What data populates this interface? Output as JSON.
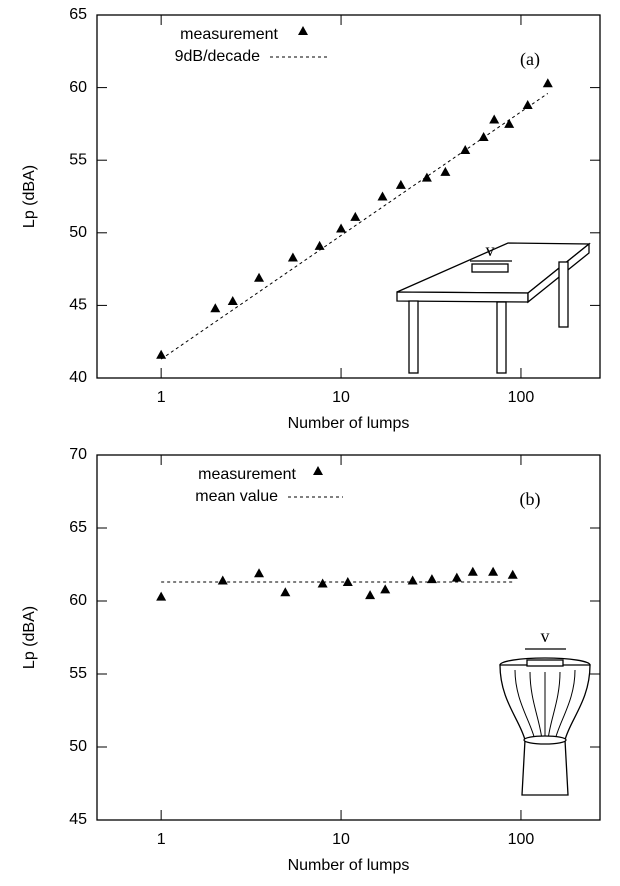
{
  "chart_data": [
    {
      "type": "scatter",
      "panel_label": "(a)",
      "xlabel": "Number of lumps",
      "ylabel": "Lp (dBA)",
      "xscale": "log",
      "xlim": [
        0.44,
        275
      ],
      "xticks": [
        1,
        10,
        100
      ],
      "ylim": [
        40,
        65
      ],
      "yticks": [
        40,
        45,
        50,
        55,
        60,
        65
      ],
      "inset_label": "v",
      "series": [
        {
          "name": "measurement",
          "color": "#000000",
          "marker": "triangle",
          "x": [
            1,
            2,
            2.5,
            3.5,
            5.4,
            7.6,
            10,
            12,
            17,
            21.5,
            30,
            38,
            49,
            62,
            71,
            86,
            109,
            141
          ],
          "values": [
            41.6,
            44.8,
            45.3,
            46.9,
            48.3,
            49.1,
            50.3,
            51.1,
            52.5,
            53.3,
            53.8,
            54.2,
            55.7,
            56.6,
            57.8,
            57.5,
            58.8,
            60.3
          ]
        },
        {
          "name": "9dB/decade",
          "color": "#000000",
          "style": "dashed",
          "x": [
            1,
            141
          ],
          "values": [
            41.3,
            59.6
          ]
        }
      ]
    },
    {
      "type": "scatter",
      "panel_label": "(b)",
      "xlabel": "Number of lumps",
      "ylabel": "Lp (dBA)",
      "xscale": "log",
      "xlim": [
        0.44,
        275
      ],
      "xticks": [
        1,
        10,
        100
      ],
      "ylim": [
        45,
        70
      ],
      "yticks": [
        45,
        50,
        55,
        60,
        65,
        70
      ],
      "inset_label": "v",
      "series": [
        {
          "name": "measurement",
          "color": "#000000",
          "marker": "triangle",
          "x": [
            1,
            2.2,
            3.5,
            4.9,
            7.9,
            10.9,
            14.5,
            17.6,
            25,
            32,
            44,
            54,
            70,
            90
          ],
          "values": [
            60.3,
            61.4,
            61.9,
            60.6,
            61.2,
            61.3,
            60.4,
            60.8,
            61.4,
            61.5,
            61.6,
            62.0,
            62.0,
            61.8
          ]
        },
        {
          "name": "mean value",
          "color": "#000000",
          "style": "dashed",
          "x": [
            1,
            90
          ],
          "values": [
            61.3,
            61.3
          ]
        }
      ]
    }
  ]
}
